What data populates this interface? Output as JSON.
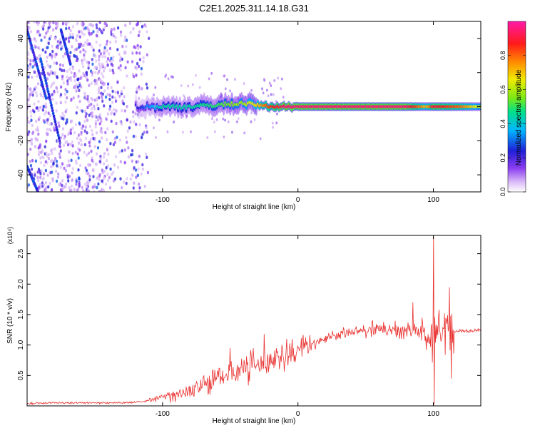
{
  "figure": {
    "title": "C2E1.2025.311.14.18.G31"
  },
  "colors": {
    "snr_line": "#e8312f",
    "axis": "#000000",
    "colorbar_stops": [
      "#ffffff",
      "#d9b8f7",
      "#8a3cf0",
      "#1f1fd8",
      "#00b5ff",
      "#00e08a",
      "#7bea16",
      "#f0ea00",
      "#ff8c00",
      "#ff1a1a",
      "#ff1aa8"
    ]
  },
  "chart_data": [
    {
      "type": "heatmap",
      "title": "C2E1.2025.311.14.18.G31",
      "xlabel": "Height of straight line (km)",
      "ylabel": "Frequency (Hz)",
      "xlim": [
        -200,
        135
      ],
      "ylim": [
        -50,
        50
      ],
      "xticks": [
        -100,
        0,
        100
      ],
      "xtick_labels": [
        "-100",
        "0",
        "100"
      ],
      "yticks": [
        -40,
        -20,
        0,
        20,
        40
      ],
      "ytick_labels": [
        "-40",
        "-20",
        "0",
        "20",
        "40"
      ],
      "colorbar": {
        "label": "Normalized spectral amplitude",
        "range": [
          0.0,
          1.0
        ],
        "ticks": [
          0.0,
          0.2,
          0.4,
          0.6,
          0.8
        ],
        "tick_labels": [
          "0.0",
          "0.2",
          "0.4",
          "0.6",
          "0.8"
        ]
      },
      "ridge": {
        "x": [
          -200,
          -180,
          -160,
          -140,
          -120,
          -100,
          -80,
          -60,
          -40,
          -30,
          -20,
          -10,
          0,
          20,
          40,
          60,
          80,
          95,
          100,
          110,
          120,
          135
        ],
        "freq": [
          20,
          0,
          -5,
          0,
          0,
          0,
          0,
          1,
          2,
          1,
          0,
          0,
          0,
          0,
          0,
          0,
          0,
          0,
          0,
          0,
          0,
          0
        ],
        "amplitude": [
          0.2,
          0.25,
          0.2,
          0.15,
          0.2,
          0.45,
          0.45,
          0.5,
          0.6,
          0.7,
          0.85,
          0.95,
          0.95,
          0.95,
          0.95,
          0.95,
          0.95,
          0.7,
          0.9,
          0.85,
          0.8,
          0.6
        ]
      }
    },
    {
      "type": "line",
      "xlabel": "Height of straight line (km)",
      "ylabel": "SNR (10 * v/v)",
      "y_multiplier": "(x10⁴)",
      "xlim": [
        -200,
        135
      ],
      "ylim": [
        0.0,
        2.8
      ],
      "xticks": [
        -100,
        0,
        100
      ],
      "xtick_labels": [
        "-100",
        "0",
        "100"
      ],
      "yticks": [
        0.5,
        1.0,
        1.5,
        2.0,
        2.5
      ],
      "ytick_labels": [
        "0.5",
        "1.0",
        "1.5",
        "2.0",
        "2.5"
      ],
      "series": [
        {
          "name": "SNR",
          "x": [
            -200,
            -180,
            -160,
            -140,
            -120,
            -110,
            -100,
            -90,
            -80,
            -70,
            -60,
            -50,
            -40,
            -30,
            -20,
            -10,
            0,
            10,
            20,
            30,
            40,
            50,
            60,
            70,
            80,
            90,
            95,
            100,
            105,
            110,
            112,
            120,
            135
          ],
          "y": [
            0.04,
            0.05,
            0.05,
            0.05,
            0.06,
            0.08,
            0.15,
            0.2,
            0.25,
            0.35,
            0.45,
            0.55,
            0.62,
            0.68,
            0.75,
            0.8,
            0.9,
            1.0,
            1.1,
            1.17,
            1.22,
            1.25,
            1.25,
            1.25,
            1.24,
            1.22,
            1.1,
            1.2,
            1.22,
            1.15,
            1.22,
            1.23,
            1.24
          ],
          "peaks": [
            {
              "x": -50,
              "y": 0.95
            },
            {
              "x": -25,
              "y": 1.18
            },
            {
              "x": -12,
              "y": 1.0
            },
            {
              "x": 55,
              "y": 1.4
            },
            {
              "x": 85,
              "y": 1.7
            },
            {
              "x": 100,
              "y": 2.78
            },
            {
              "x": 100,
              "y": 0.02
            },
            {
              "x": 112,
              "y": 1.95
            },
            {
              "x": 113,
              "y": 0.45
            }
          ]
        }
      ]
    }
  ]
}
